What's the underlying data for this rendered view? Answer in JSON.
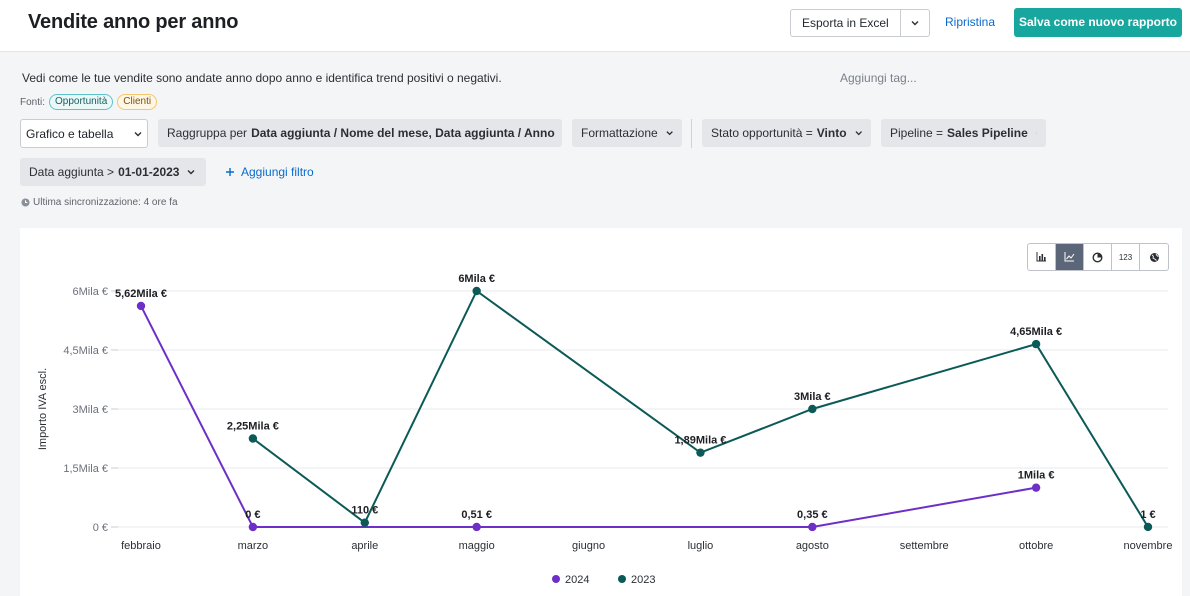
{
  "header": {
    "title": "Vendite anno per anno",
    "export_label": "Esporta in Excel",
    "reset_label": "Ripristina",
    "save_label": "Salva come nuovo rapporto"
  },
  "description": "Vedi come le tue vendite sono andate anno dopo anno e identifica trend positivi o negativi.",
  "tags_placeholder": "Aggiungi tag...",
  "sources": {
    "label": "Fonti:",
    "items": [
      "Opportunità",
      "Clienti"
    ]
  },
  "filters": {
    "view": "Grafico e tabella",
    "group_prefix": "Raggruppa per",
    "group_value": "Data aggiunta / Nome del mese, Data aggiunta / Anno",
    "format_label": "Formattazione",
    "status_prefix": "Stato opportunità =",
    "status_value": "Vinto",
    "pipeline_prefix": "Pipeline =",
    "pipeline_value": "Sales Pipeline",
    "date_prefix": "Data aggiunta >",
    "date_value": "01-01-2023",
    "add_filter_label": "Aggiungi filtro"
  },
  "sync_text": "Ultima sincronizzazione: 4 ore fa",
  "chart_toggle": {
    "number_label": "123",
    "active": "line"
  },
  "chart_data": {
    "type": "line",
    "ylabel": "Importo IVA escl.",
    "xlabel": "",
    "ylim": [
      0,
      6000
    ],
    "y_ticks": [
      {
        "v": 0,
        "label": "0 €"
      },
      {
        "v": 1500,
        "label": "1,5Mila €"
      },
      {
        "v": 3000,
        "label": "3Mila €"
      },
      {
        "v": 4500,
        "label": "4,5Mila €"
      },
      {
        "v": 6000,
        "label": "6Mila €"
      }
    ],
    "categories": [
      "febbraio",
      "marzo",
      "aprile",
      "maggio",
      "giugno",
      "luglio",
      "agosto",
      "settembre",
      "ottobre",
      "novembre"
    ],
    "grid": true,
    "legend_position": "bottom",
    "series": [
      {
        "name": "2024",
        "color": "#6d2fc7",
        "points": [
          {
            "i": 0,
            "v": 5620,
            "label": "5,62Mila €"
          },
          {
            "i": 1,
            "v": 0,
            "label": "0 €"
          },
          {
            "i": 3,
            "v": 0.51,
            "label": "0,51 €"
          },
          {
            "i": 6,
            "v": 0.35,
            "label": "0,35 €"
          },
          {
            "i": 8,
            "v": 1000,
            "label": "1Mila €"
          }
        ]
      },
      {
        "name": "2023",
        "color": "#0b5a57",
        "points": [
          {
            "i": 1,
            "v": 2250,
            "label": "2,25Mila €"
          },
          {
            "i": 2,
            "v": 110,
            "label": "110 €"
          },
          {
            "i": 3,
            "v": 6000,
            "label": "6Mila €"
          },
          {
            "i": 5,
            "v": 1890,
            "label": "1,89Mila €"
          },
          {
            "i": 6,
            "v": 3000,
            "label": "3Mila €"
          },
          {
            "i": 8,
            "v": 4650,
            "label": "4,65Mila €"
          },
          {
            "i": 9,
            "v": 1,
            "label": "1 €"
          }
        ]
      }
    ]
  }
}
